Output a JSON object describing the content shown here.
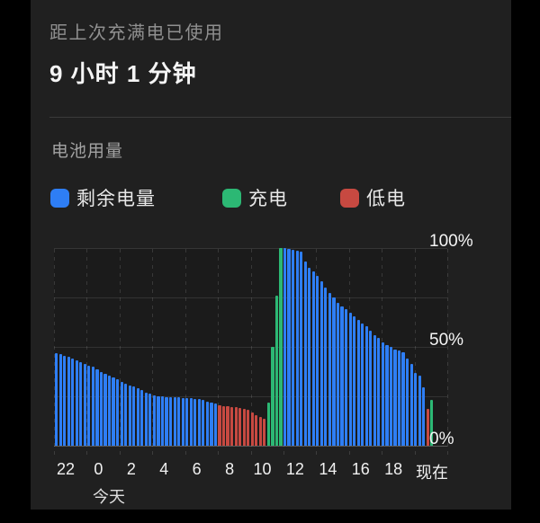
{
  "header": {
    "since_label": "距上次充满电已使用",
    "duration": "9 小时 1 分钟"
  },
  "usage": {
    "title": "电池用量"
  },
  "legend": {
    "items": [
      {
        "key": "remaining",
        "label": "剩余电量",
        "color": "#2e7ef5"
      },
      {
        "key": "charging",
        "label": "充电",
        "color": "#2cb874"
      },
      {
        "key": "low",
        "label": "低电",
        "color": "#c74941"
      }
    ]
  },
  "chart_data": {
    "type": "bar",
    "title": "电池用量",
    "unit": "percent",
    "bar_interval_minutes": 15,
    "ylim": [
      0,
      100
    ],
    "grid": true,
    "y_axis": {
      "ticks": [
        {
          "label": "0%",
          "value": 0
        },
        {
          "label": "50%",
          "value": 50
        },
        {
          "label": "100%",
          "value": 100
        }
      ]
    },
    "x_axis": {
      "tick_labels": [
        "22",
        "0",
        "2",
        "4",
        "6",
        "8",
        "10",
        "12",
        "14",
        "16",
        "18",
        "现在"
      ],
      "day_label": "今天",
      "grid_divisions": 12
    },
    "segments": [
      {
        "state": "remaining",
        "values": [
          47,
          46.5,
          45.5,
          45,
          44,
          43,
          42.5,
          41.5,
          40.5,
          40,
          38.5,
          37.5,
          36.5,
          35.5,
          34.5,
          33.5,
          32.5,
          31.5,
          30.5,
          30,
          29,
          28,
          27,
          26.5,
          25.5,
          25,
          25,
          24.5,
          24.5,
          24.5,
          24.5,
          24,
          24,
          24,
          23.5,
          23.5,
          23,
          22.5,
          22,
          21.5
        ]
      },
      {
        "state": "low",
        "values": [
          20.5,
          20,
          20,
          19.5,
          19.5,
          19,
          18.5,
          18,
          17,
          15.5,
          14.5,
          13.5
        ]
      },
      {
        "state": "charging",
        "values": [
          22,
          50,
          76,
          100
        ]
      },
      {
        "state": "remaining",
        "values": [
          100,
          99.5,
          99,
          98.5,
          98,
          93,
          90,
          88,
          86,
          83,
          80,
          77.5,
          75,
          72.5,
          70.5,
          69,
          67.5,
          65.5,
          63.5,
          62,
          60.5,
          58,
          56,
          54.5,
          52.5,
          51,
          50,
          48.5,
          48,
          47.5,
          44,
          41.5,
          37,
          35.5,
          29.5
        ]
      },
      {
        "state": "low",
        "values": [
          18.5
        ]
      },
      {
        "state": "charging",
        "values": [
          23
        ]
      }
    ]
  }
}
